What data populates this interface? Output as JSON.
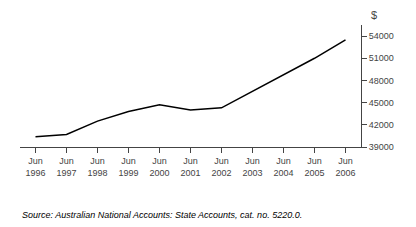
{
  "chart_data": {
    "type": "line",
    "categories": [
      "Jun\n1996",
      "Jun\n1997",
      "Jun\n1998",
      "Jun\n1999",
      "Jun\n2000",
      "Jun\n2001",
      "Jun\n2002",
      "Jun\n2003",
      "Jun\n2004",
      "Jun\n2005",
      "Jun\n2006"
    ],
    "values": [
      40400,
      40700,
      42500,
      43800,
      44700,
      44000,
      44300,
      46500,
      48700,
      51000,
      53500
    ],
    "color": "#000000",
    "ylabel": "$",
    "annotations": [
      "Source: Australian National Accounts: State Accounts, cat. no. 5220.0."
    ],
    "ylim": [
      39000,
      55500
    ],
    "yticks": [
      39000,
      42000,
      45000,
      48000,
      51000,
      54000
    ],
    "grid": false
  }
}
